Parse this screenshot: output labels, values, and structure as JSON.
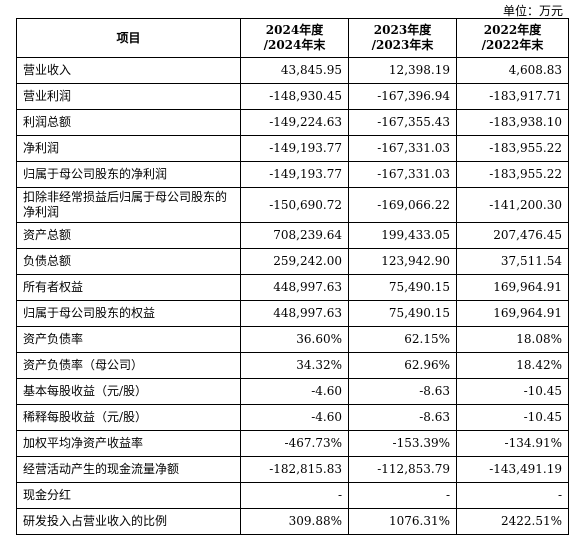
{
  "unit": "单位：万元",
  "headers": {
    "item": "项目",
    "y2024a": "2024年度",
    "y2024b": "/2024年末",
    "y2023a": "2023年度",
    "y2023b": "/2023年末",
    "y2022a": "2022年度",
    "y2022b": "/2022年末"
  },
  "rows": [
    {
      "label": "营业收入",
      "v2024": "43,845.95",
      "v2023": "12,398.19",
      "v2022": "4,608.83"
    },
    {
      "label": "营业利润",
      "v2024": "-148,930.45",
      "v2023": "-167,396.94",
      "v2022": "-183,917.71"
    },
    {
      "label": "利润总额",
      "v2024": "-149,224.63",
      "v2023": "-167,355.43",
      "v2022": "-183,938.10"
    },
    {
      "label": "净利润",
      "v2024": "-149,193.77",
      "v2023": "-167,331.03",
      "v2022": "-183,955.22"
    },
    {
      "label": "归属于母公司股东的净利润",
      "v2024": "-149,193.77",
      "v2023": "-167,331.03",
      "v2022": "-183,955.22"
    },
    {
      "label": "扣除非经常损益后归属于母公司股东的净利润",
      "v2024": "-150,690.72",
      "v2023": "-169,066.22",
      "v2022": "-141,200.30"
    },
    {
      "label": "资产总额",
      "v2024": "708,239.64",
      "v2023": "199,433.05",
      "v2022": "207,476.45"
    },
    {
      "label": "负债总额",
      "v2024": "259,242.00",
      "v2023": "123,942.90",
      "v2022": "37,511.54"
    },
    {
      "label": "所有者权益",
      "v2024": "448,997.63",
      "v2023": "75,490.15",
      "v2022": "169,964.91"
    },
    {
      "label": "归属于母公司股东的权益",
      "v2024": "448,997.63",
      "v2023": "75,490.15",
      "v2022": "169,964.91"
    },
    {
      "label": "资产负债率",
      "v2024": "36.60%",
      "v2023": "62.15%",
      "v2022": "18.08%"
    },
    {
      "label": "资产负债率（母公司）",
      "v2024": "34.32%",
      "v2023": "62.96%",
      "v2022": "18.42%"
    },
    {
      "label": "基本每股收益（元/股）",
      "v2024": "-4.60",
      "v2023": "-8.63",
      "v2022": "-10.45"
    },
    {
      "label": "稀释每股收益（元/股）",
      "v2024": "-4.60",
      "v2023": "-8.63",
      "v2022": "-10.45"
    },
    {
      "label": "加权平均净资产收益率",
      "v2024": "-467.73%",
      "v2023": "-153.39%",
      "v2022": "-134.91%"
    },
    {
      "label": "经营活动产生的现金流量净额",
      "v2024": "-182,815.83",
      "v2023": "-112,853.79",
      "v2022": "-143,491.19"
    },
    {
      "label": "现金分红",
      "v2024": "-",
      "v2023": "-",
      "v2022": "-"
    },
    {
      "label": "研发投入占营业收入的比例",
      "v2024": "309.88%",
      "v2023": "1076.31%",
      "v2022": "2422.51%"
    }
  ]
}
